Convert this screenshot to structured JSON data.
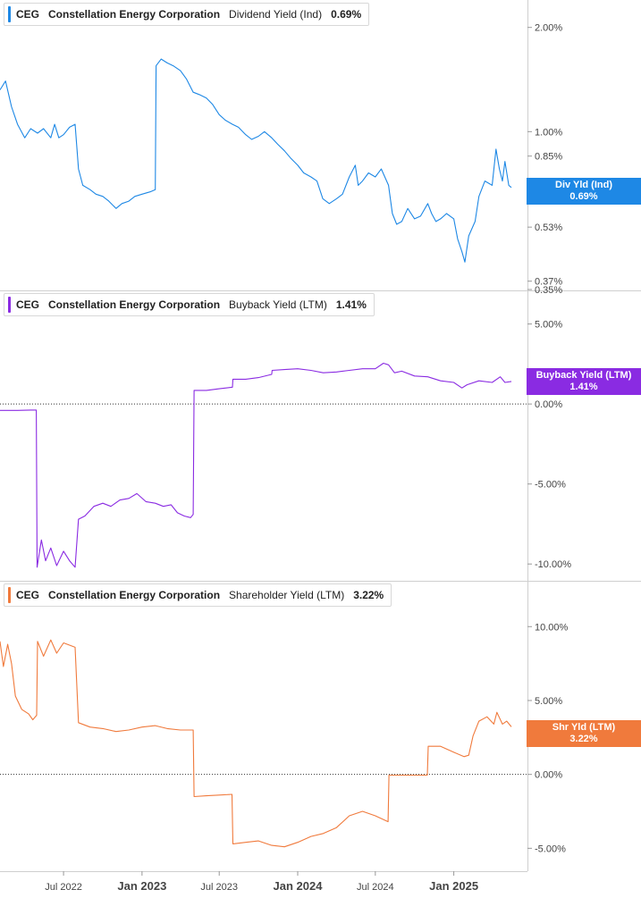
{
  "colors": {
    "div": "#1e88e5",
    "buyback": "#8a2be2",
    "shareholder": "#f07a3c",
    "grid": "#cfcfcf",
    "axis_text": "#444444"
  },
  "panels": [
    {
      "ticker": "CEG",
      "company": "Constellation Energy Corporation",
      "metric": "Dividend Yield (Ind)",
      "value": "0.69%",
      "tag_line1": "Div Yld (Ind)",
      "tag_line2": "0.69%"
    },
    {
      "ticker": "CEG",
      "company": "Constellation Energy Corporation",
      "metric": "Buyback Yield (LTM)",
      "value": "1.41%",
      "tag_line1": "Buyback Yield (LTM)",
      "tag_line2": "1.41%"
    },
    {
      "ticker": "CEG",
      "company": "Constellation Energy Corporation",
      "metric": "Shareholder Yield (LTM)",
      "value": "3.22%",
      "tag_line1": "Shr Yld (LTM)",
      "tag_line2": "3.22%"
    }
  ],
  "chart_data": [
    {
      "type": "line",
      "title": "Dividend Yield (Ind)",
      "scale": "log",
      "ylim": [
        0.35,
        2.4
      ],
      "y_ticks": [
        {
          "v": 2.0,
          "label": "2.00%"
        },
        {
          "v": 1.0,
          "label": "1.00%"
        },
        {
          "v": 0.85,
          "label": "0.85%"
        },
        {
          "v": 0.53,
          "label": "0.53%"
        },
        {
          "v": 0.37,
          "label": "0.37%"
        },
        {
          "v": 0.35,
          "label": "0.35%"
        }
      ],
      "x_range": [
        "2022-02-02",
        "2025-05-16"
      ],
      "series": [
        {
          "name": "Div Yld (Ind)",
          "points": [
            [
              "2022-02-02",
              1.32
            ],
            [
              "2022-02-15",
              1.4
            ],
            [
              "2022-03-01",
              1.18
            ],
            [
              "2022-03-15",
              1.05
            ],
            [
              "2022-04-01",
              0.96
            ],
            [
              "2022-04-15",
              1.02
            ],
            [
              "2022-05-01",
              0.99
            ],
            [
              "2022-05-15",
              1.02
            ],
            [
              "2022-06-01",
              0.96
            ],
            [
              "2022-06-10",
              1.05
            ],
            [
              "2022-06-20",
              0.96
            ],
            [
              "2022-07-01",
              0.98
            ],
            [
              "2022-07-15",
              1.03
            ],
            [
              "2022-07-28",
              1.05
            ],
            [
              "2022-08-05",
              0.78
            ],
            [
              "2022-08-15",
              0.7
            ],
            [
              "2022-09-01",
              0.68
            ],
            [
              "2022-09-15",
              0.66
            ],
            [
              "2022-10-01",
              0.65
            ],
            [
              "2022-10-15",
              0.63
            ],
            [
              "2022-11-01",
              0.6
            ],
            [
              "2022-11-15",
              0.62
            ],
            [
              "2022-12-01",
              0.63
            ],
            [
              "2022-12-15",
              0.65
            ],
            [
              "2023-01-01",
              0.66
            ],
            [
              "2023-01-20",
              0.67
            ],
            [
              "2023-02-01",
              0.68
            ],
            [
              "2023-02-03",
              1.55
            ],
            [
              "2023-02-15",
              1.62
            ],
            [
              "2023-03-01",
              1.58
            ],
            [
              "2023-03-15",
              1.55
            ],
            [
              "2023-04-01",
              1.5
            ],
            [
              "2023-04-15",
              1.42
            ],
            [
              "2023-05-01",
              1.3
            ],
            [
              "2023-05-15",
              1.28
            ],
            [
              "2023-06-01",
              1.25
            ],
            [
              "2023-06-15",
              1.2
            ],
            [
              "2023-07-01",
              1.12
            ],
            [
              "2023-07-15",
              1.08
            ],
            [
              "2023-08-01",
              1.05
            ],
            [
              "2023-08-15",
              1.03
            ],
            [
              "2023-09-01",
              0.98
            ],
            [
              "2023-09-15",
              0.95
            ],
            [
              "2023-10-01",
              0.97
            ],
            [
              "2023-10-15",
              1.0
            ],
            [
              "2023-11-01",
              0.96
            ],
            [
              "2023-11-15",
              0.92
            ],
            [
              "2023-12-01",
              0.88
            ],
            [
              "2023-12-15",
              0.84
            ],
            [
              "2024-01-01",
              0.8
            ],
            [
              "2024-01-15",
              0.76
            ],
            [
              "2024-02-01",
              0.74
            ],
            [
              "2024-02-15",
              0.72
            ],
            [
              "2024-02-29",
              0.64
            ],
            [
              "2024-03-15",
              0.62
            ],
            [
              "2024-04-01",
              0.64
            ],
            [
              "2024-04-15",
              0.66
            ],
            [
              "2024-05-01",
              0.74
            ],
            [
              "2024-05-15",
              0.8
            ],
            [
              "2024-05-22",
              0.7
            ],
            [
              "2024-06-01",
              0.72
            ],
            [
              "2024-06-15",
              0.76
            ],
            [
              "2024-07-01",
              0.74
            ],
            [
              "2024-07-15",
              0.78
            ],
            [
              "2024-08-01",
              0.7
            ],
            [
              "2024-08-10",
              0.58
            ],
            [
              "2024-08-20",
              0.54
            ],
            [
              "2024-09-01",
              0.55
            ],
            [
              "2024-09-15",
              0.6
            ],
            [
              "2024-10-01",
              0.56
            ],
            [
              "2024-10-15",
              0.57
            ],
            [
              "2024-11-01",
              0.62
            ],
            [
              "2024-11-10",
              0.58
            ],
            [
              "2024-11-20",
              0.55
            ],
            [
              "2024-12-01",
              0.56
            ],
            [
              "2024-12-15",
              0.58
            ],
            [
              "2025-01-01",
              0.56
            ],
            [
              "2025-01-10",
              0.49
            ],
            [
              "2025-01-20",
              0.45
            ],
            [
              "2025-01-27",
              0.42
            ],
            [
              "2025-02-05",
              0.5
            ],
            [
              "2025-02-20",
              0.55
            ],
            [
              "2025-03-01",
              0.65
            ],
            [
              "2025-03-15",
              0.72
            ],
            [
              "2025-04-01",
              0.7
            ],
            [
              "2025-04-10",
              0.89
            ],
            [
              "2025-04-18",
              0.78
            ],
            [
              "2025-04-25",
              0.72
            ],
            [
              "2025-05-01",
              0.82
            ],
            [
              "2025-05-10",
              0.7
            ],
            [
              "2025-05-16",
              0.69
            ]
          ]
        }
      ]
    },
    {
      "type": "line",
      "title": "Buyback Yield (LTM)",
      "scale": "linear",
      "ylim": [
        -11.05,
        7.1
      ],
      "y_ticks": [
        {
          "v": 5,
          "label": "5.00%"
        },
        {
          "v": 0,
          "label": "0.00%"
        },
        {
          "v": -5,
          "label": "-5.00%"
        },
        {
          "v": -10,
          "label": "-10.00%"
        }
      ],
      "zero_line": true,
      "x_range": [
        "2022-02-02",
        "2025-05-16"
      ],
      "series": [
        {
          "name": "Buyback Yield (LTM)",
          "points": [
            [
              "2022-02-02",
              -0.4
            ],
            [
              "2022-03-15",
              -0.4
            ],
            [
              "2022-04-15",
              -0.38
            ],
            [
              "2022-04-28",
              -0.38
            ],
            [
              "2022-04-30",
              -10.2
            ],
            [
              "2022-05-10",
              -8.5
            ],
            [
              "2022-05-20",
              -9.8
            ],
            [
              "2022-06-01",
              -9.0
            ],
            [
              "2022-06-15",
              -10.1
            ],
            [
              "2022-07-01",
              -9.2
            ],
            [
              "2022-07-15",
              -9.8
            ],
            [
              "2022-07-28",
              -10.2
            ],
            [
              "2022-08-05",
              -7.2
            ],
            [
              "2022-08-20",
              -7.0
            ],
            [
              "2022-09-10",
              -6.4
            ],
            [
              "2022-10-01",
              -6.2
            ],
            [
              "2022-10-20",
              -6.4
            ],
            [
              "2022-11-10",
              -6.0
            ],
            [
              "2022-12-01",
              -5.9
            ],
            [
              "2022-12-20",
              -5.6
            ],
            [
              "2023-01-10",
              -6.1
            ],
            [
              "2023-02-01",
              -6.2
            ],
            [
              "2023-02-20",
              -6.4
            ],
            [
              "2023-03-10",
              -6.3
            ],
            [
              "2023-03-25",
              -6.8
            ],
            [
              "2023-04-10",
              -7.0
            ],
            [
              "2023-04-25",
              -7.1
            ],
            [
              "2023-05-01",
              -6.9
            ],
            [
              "2023-05-03",
              0.85
            ],
            [
              "2023-06-01",
              0.85
            ],
            [
              "2023-07-01",
              0.95
            ],
            [
              "2023-08-01",
              1.05
            ],
            [
              "2023-08-02",
              1.55
            ],
            [
              "2023-09-01",
              1.55
            ],
            [
              "2023-10-01",
              1.65
            ],
            [
              "2023-11-01",
              1.85
            ],
            [
              "2023-11-02",
              2.1
            ],
            [
              "2023-12-01",
              2.15
            ],
            [
              "2024-01-01",
              2.2
            ],
            [
              "2024-02-01",
              2.1
            ],
            [
              "2024-03-01",
              1.95
            ],
            [
              "2024-04-01",
              2.0
            ],
            [
              "2024-05-01",
              2.1
            ],
            [
              "2024-06-01",
              2.2
            ],
            [
              "2024-07-01",
              2.2
            ],
            [
              "2024-07-20",
              2.55
            ],
            [
              "2024-08-01",
              2.45
            ],
            [
              "2024-08-15",
              1.95
            ],
            [
              "2024-09-01",
              2.05
            ],
            [
              "2024-10-01",
              1.75
            ],
            [
              "2024-11-01",
              1.7
            ],
            [
              "2024-12-01",
              1.45
            ],
            [
              "2025-01-01",
              1.35
            ],
            [
              "2025-01-20",
              1.0
            ],
            [
              "2025-02-01",
              1.2
            ],
            [
              "2025-03-01",
              1.45
            ],
            [
              "2025-04-01",
              1.35
            ],
            [
              "2025-04-20",
              1.7
            ],
            [
              "2025-05-01",
              1.35
            ],
            [
              "2025-05-16",
              1.41
            ]
          ]
        }
      ]
    },
    {
      "type": "line",
      "title": "Shareholder Yield (LTM)",
      "scale": "linear",
      "ylim": [
        -6.55,
        13.1
      ],
      "y_ticks": [
        {
          "v": 10,
          "label": "10.00%"
        },
        {
          "v": 5,
          "label": "5.00%"
        },
        {
          "v": 0,
          "label": "0.00%"
        },
        {
          "v": -5,
          "label": "-5.00%"
        }
      ],
      "zero_line": true,
      "x_range": [
        "2022-02-02",
        "2025-05-16"
      ],
      "series": [
        {
          "name": "Shr Yld (LTM)",
          "points": [
            [
              "2022-02-02",
              9.0
            ],
            [
              "2022-02-10",
              7.3
            ],
            [
              "2022-02-20",
              8.8
            ],
            [
              "2022-03-01",
              7.5
            ],
            [
              "2022-03-10",
              5.3
            ],
            [
              "2022-03-25",
              4.4
            ],
            [
              "2022-04-10",
              4.1
            ],
            [
              "2022-04-20",
              3.7
            ],
            [
              "2022-04-29",
              4.0
            ],
            [
              "2022-05-01",
              9.0
            ],
            [
              "2022-05-15",
              8.0
            ],
            [
              "2022-06-01",
              9.1
            ],
            [
              "2022-06-15",
              8.2
            ],
            [
              "2022-07-01",
              8.9
            ],
            [
              "2022-07-28",
              8.6
            ],
            [
              "2022-08-05",
              3.5
            ],
            [
              "2022-09-01",
              3.2
            ],
            [
              "2022-10-01",
              3.1
            ],
            [
              "2022-11-01",
              2.9
            ],
            [
              "2022-12-01",
              3.0
            ],
            [
              "2023-01-01",
              3.2
            ],
            [
              "2023-02-01",
              3.3
            ],
            [
              "2023-03-01",
              3.1
            ],
            [
              "2023-04-01",
              3.0
            ],
            [
              "2023-05-01",
              3.0
            ],
            [
              "2023-05-03",
              -1.5
            ],
            [
              "2023-06-01",
              -1.45
            ],
            [
              "2023-07-01",
              -1.4
            ],
            [
              "2023-07-31",
              -1.35
            ],
            [
              "2023-08-02",
              -4.7
            ],
            [
              "2023-09-01",
              -4.6
            ],
            [
              "2023-10-01",
              -4.5
            ],
            [
              "2023-11-01",
              -4.8
            ],
            [
              "2023-12-01",
              -4.9
            ],
            [
              "2024-01-01",
              -4.6
            ],
            [
              "2024-02-01",
              -4.2
            ],
            [
              "2024-03-01",
              -4.0
            ],
            [
              "2024-04-01",
              -3.6
            ],
            [
              "2024-05-01",
              -2.8
            ],
            [
              "2024-06-01",
              -2.5
            ],
            [
              "2024-07-01",
              -2.8
            ],
            [
              "2024-07-31",
              -3.2
            ],
            [
              "2024-08-02",
              -0.05
            ],
            [
              "2024-09-01",
              -0.05
            ],
            [
              "2024-10-01",
              -0.05
            ],
            [
              "2024-10-31",
              -0.05
            ],
            [
              "2024-11-02",
              1.9
            ],
            [
              "2024-12-01",
              1.9
            ],
            [
              "2025-01-01",
              1.5
            ],
            [
              "2025-01-25",
              1.2
            ],
            [
              "2025-02-05",
              1.3
            ],
            [
              "2025-02-15",
              2.6
            ],
            [
              "2025-03-01",
              3.6
            ],
            [
              "2025-03-20",
              3.9
            ],
            [
              "2025-04-05",
              3.4
            ],
            [
              "2025-04-12",
              4.2
            ],
            [
              "2025-04-25",
              3.4
            ],
            [
              "2025-05-05",
              3.6
            ],
            [
              "2025-05-16",
              3.22
            ]
          ]
        }
      ]
    }
  ],
  "x_axis": {
    "ticks": [
      {
        "date": "2022-07-01",
        "label": "Jul 2022",
        "major": false
      },
      {
        "date": "2023-01-01",
        "label": "Jan 2023",
        "major": true
      },
      {
        "date": "2023-07-01",
        "label": "Jul 2023",
        "major": false
      },
      {
        "date": "2024-01-01",
        "label": "Jan 2024",
        "major": true
      },
      {
        "date": "2024-07-01",
        "label": "Jul 2024",
        "major": false
      },
      {
        "date": "2025-01-01",
        "label": "Jan 2025",
        "major": true
      }
    ]
  }
}
